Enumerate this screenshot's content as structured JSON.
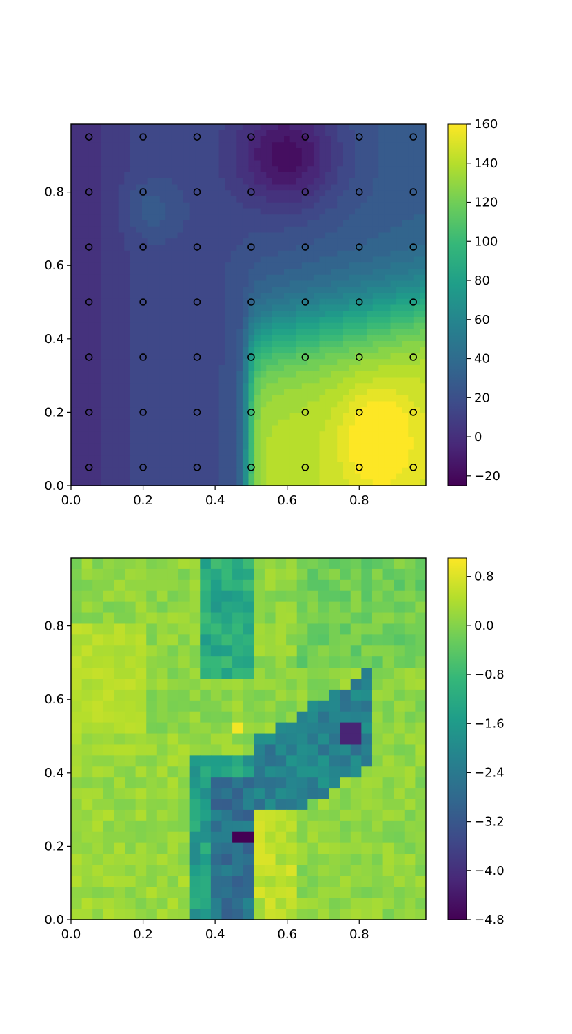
{
  "chart_data": [
    {
      "type": "heatmap",
      "subtype": "filled-contour-with-sample-points",
      "title": "",
      "xlabel": "",
      "ylabel": "",
      "xlim": [
        0.0,
        0.985
      ],
      "ylim": [
        0.0,
        0.985
      ],
      "x_ticks": [
        "0.0",
        "0.2",
        "0.4",
        "0.6",
        "0.8"
      ],
      "y_ticks": [
        "0.0",
        "0.2",
        "0.4",
        "0.6",
        "0.8"
      ],
      "colormap": "viridis",
      "colorbar": {
        "range": [
          -25,
          160
        ],
        "ticks": [
          "−20",
          "0",
          "20",
          "40",
          "60",
          "80",
          "100",
          "120",
          "140",
          "160"
        ]
      },
      "sample_points": {
        "x": [
          0.05,
          0.2,
          0.35,
          0.5,
          0.65,
          0.8,
          0.95
        ],
        "y": [
          0.05,
          0.2,
          0.35,
          0.5,
          0.65,
          0.8,
          0.95
        ]
      },
      "field_features": [
        {
          "desc": "minimum",
          "x": 0.6,
          "y": 0.9,
          "value": -20
        },
        {
          "desc": "maximum",
          "x": 0.85,
          "y": 0.13,
          "value": 158
        },
        {
          "desc": "local bump",
          "x": 0.22,
          "y": 0.75,
          "value": 15
        }
      ]
    },
    {
      "type": "heatmap",
      "subtype": "pixelated-grid",
      "title": "",
      "xlabel": "",
      "ylabel": "",
      "xlim": [
        0.0,
        0.985
      ],
      "ylim": [
        0.0,
        0.985
      ],
      "x_ticks": [
        "0.0",
        "0.2",
        "0.4",
        "0.6",
        "0.8"
      ],
      "y_ticks": [
        "0.0",
        "0.2",
        "0.4",
        "0.6",
        "0.8"
      ],
      "colormap": "viridis",
      "grid_size": [
        33,
        33
      ],
      "colorbar": {
        "range": [
          -4.8,
          1.1
        ],
        "ticks": [
          "0.8",
          "0.0",
          "−0.8",
          "−1.6",
          "−2.4",
          "−3.2",
          "−4.0",
          "−4.8"
        ]
      },
      "regions": [
        {
          "desc": "background",
          "value": 0.1
        },
        {
          "desc": "left band",
          "x": [
            0.0,
            0.2
          ],
          "y": [
            0.5,
            0.8
          ],
          "value": 0.45
        },
        {
          "desc": "vertical low stripe",
          "x": [
            0.38,
            0.5
          ],
          "y": [
            0.0,
            0.4
          ],
          "value": -2.6
        },
        {
          "desc": "minimum",
          "x": 0.47,
          "y": 0.22,
          "value": -4.8
        },
        {
          "desc": "diagonal low band",
          "x": [
            0.5,
            0.85
          ],
          "y": [
            0.35,
            0.65
          ],
          "value": -2.2
        },
        {
          "desc": "local minimum",
          "x": 0.79,
          "y": 0.52,
          "value": -4.2
        },
        {
          "desc": "upper stripe",
          "x": [
            0.37,
            0.5
          ],
          "y": [
            0.65,
            0.985
          ],
          "value": -1.2
        },
        {
          "desc": "bright spot",
          "x": 0.47,
          "y": 0.52,
          "value": 1.0
        }
      ]
    }
  ]
}
